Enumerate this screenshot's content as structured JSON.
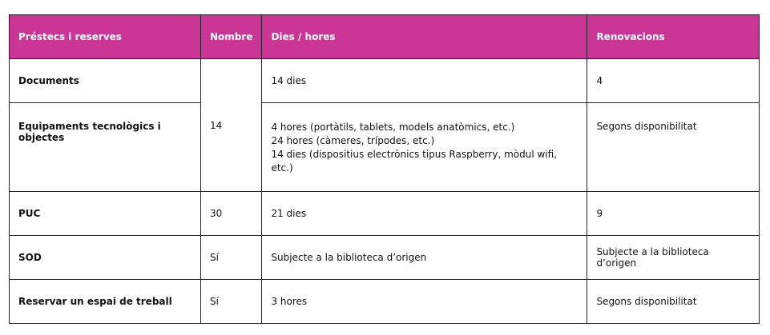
{
  "header": {
    "col1": "Préstecs i reserves",
    "col2": "Nombre",
    "col3": "Dies / hores",
    "col4": "Renovacions"
  },
  "rows": [
    {
      "label": "Documents",
      "nombre": "14",
      "dies": "14 dies",
      "renovacions": "4"
    },
    {
      "label": "Equipaments tecnològics i objectes",
      "dies_lines": [
        "4 hores (portàtils, tablets, models anatòmics, etc.)",
        "24 hores (càmeres, trípodes, etc.)",
        "14 dies (dispositius electrònics tipus Raspberry, mòdul wifi,",
        "etc.)"
      ],
      "renovacions": "Segons disponibilitat"
    },
    {
      "label": "PUC",
      "nombre": "30",
      "dies": "21 dies",
      "renovacions": "9"
    },
    {
      "label": "SOD",
      "nombre": "Sí",
      "dies": "Subjecte a la biblioteca d’origen",
      "renovacions": "Subjecte a la biblioteca d’origen"
    },
    {
      "label": "Reservar un espai de treball",
      "nombre": "Sí",
      "dies": "3 hores",
      "renovacions": "Segons disponibilitat"
    }
  ],
  "colors": {
    "header_bg": "#cb3596",
    "header_text": "#ffffff"
  }
}
